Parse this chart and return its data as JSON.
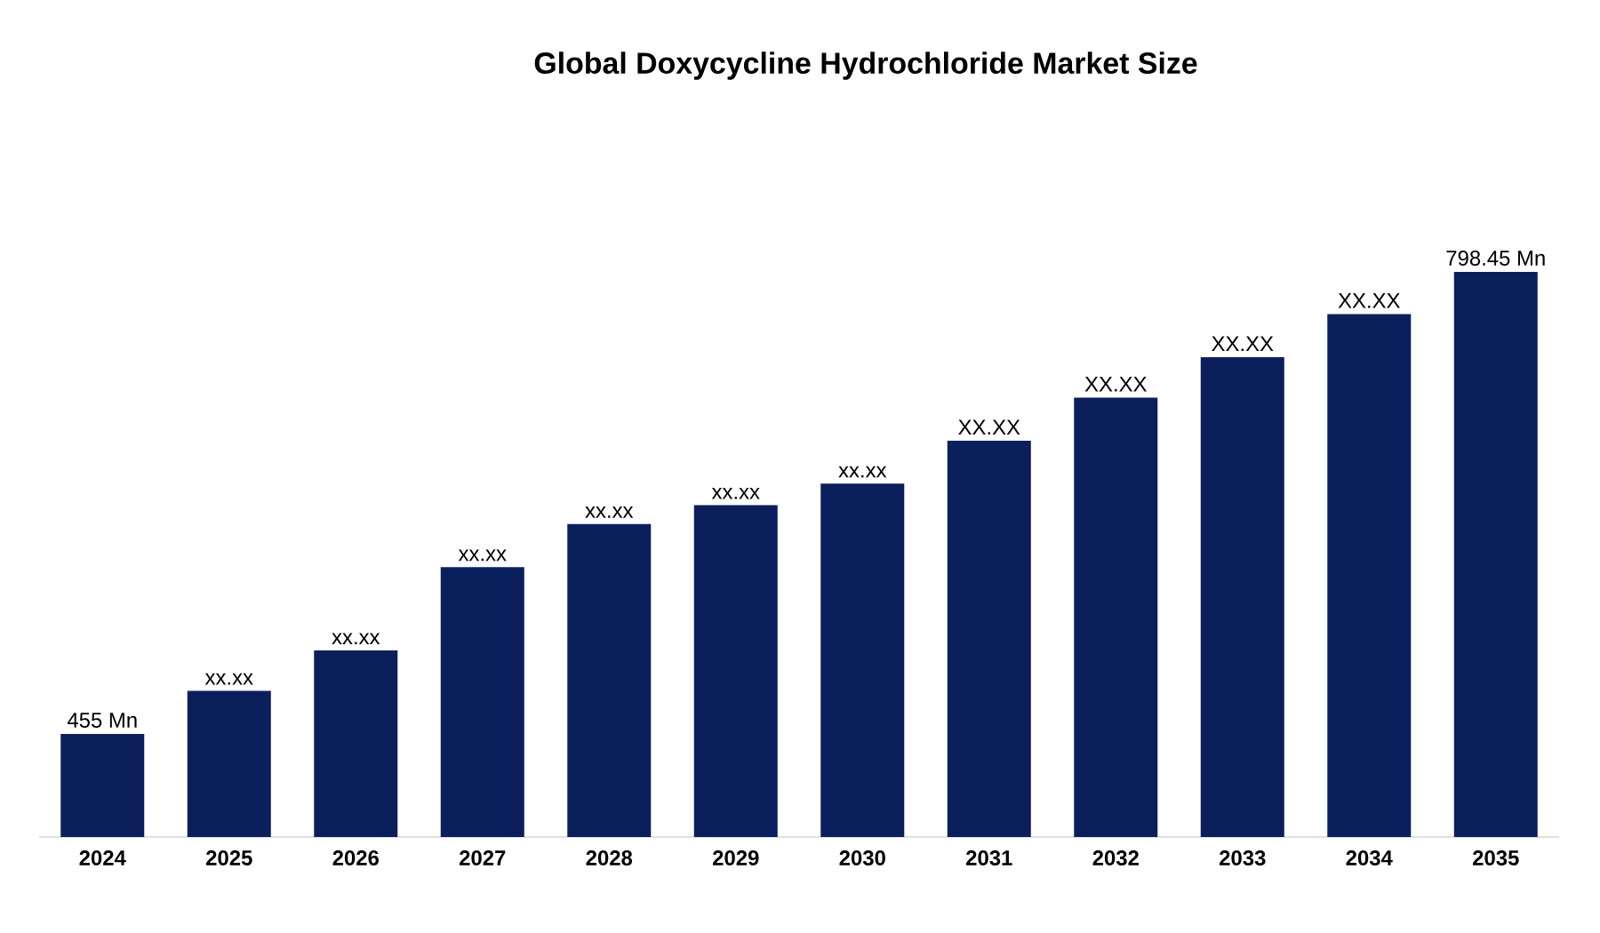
{
  "chart_data": {
    "type": "bar",
    "title": "Global Doxycycline Hydrochloride Market Size",
    "categories": [
      "2024",
      "2025",
      "2026",
      "2027",
      "2028",
      "2029",
      "2030",
      "2031",
      "2032",
      "2033",
      "2034",
      "2035"
    ],
    "values": [
      455,
      487,
      517,
      579,
      611,
      625,
      641,
      673,
      705,
      735,
      767,
      798.45
    ],
    "value_labels": [
      "455 Mn",
      "xx.xx",
      "xx.xx",
      "xx.xx",
      "xx.xx",
      "xx.xx",
      "xx.xx",
      "XX.XX",
      "XX.XX",
      "XX.XX",
      "XX.XX",
      "798.45 Mn"
    ],
    "color": "#0b1f5c",
    "ylim": [
      378.4,
      798.45
    ]
  }
}
